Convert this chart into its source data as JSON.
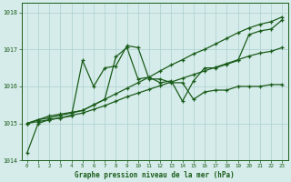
{
  "xlabel": "Graphe pression niveau de la mer (hPa)",
  "ylim": [
    1014.0,
    1018.25
  ],
  "xlim": [
    -0.5,
    23.5
  ],
  "yticks": [
    1014,
    1015,
    1016,
    1017,
    1018
  ],
  "xticks": [
    0,
    1,
    2,
    3,
    4,
    5,
    6,
    7,
    8,
    9,
    10,
    11,
    12,
    13,
    14,
    15,
    16,
    17,
    18,
    19,
    20,
    21,
    22,
    23
  ],
  "bg_color": "#d6ecea",
  "grid_color": "#aacfcf",
  "line_color": "#1a5c1a",
  "series": [
    [
      1014.2,
      1015.0,
      1015.1,
      1015.15,
      1015.2,
      1016.7,
      1016.0,
      1016.5,
      1016.55,
      1017.1,
      1017.05,
      1016.2,
      1016.2,
      1016.1,
      1016.1,
      1015.65,
      1015.85,
      1015.9,
      1015.9,
      1016.0,
      1016.0,
      1016.0,
      1016.05,
      1016.05
    ],
    [
      1015.0,
      1015.1,
      1015.2,
      1015.25,
      1015.3,
      1015.35,
      1015.5,
      1015.65,
      1016.8,
      1017.05,
      1016.2,
      1016.25,
      1016.1,
      1016.15,
      1015.6,
      1016.15,
      1016.5,
      1016.5,
      1016.6,
      1016.7,
      1017.4,
      1017.5,
      1017.55,
      1017.8
    ],
    [
      1015.0,
      1015.1,
      1015.15,
      1015.22,
      1015.28,
      1015.35,
      1015.5,
      1015.65,
      1015.8,
      1015.95,
      1016.1,
      1016.25,
      1016.42,
      1016.58,
      1016.72,
      1016.88,
      1017.0,
      1017.15,
      1017.3,
      1017.45,
      1017.58,
      1017.68,
      1017.75,
      1017.88
    ],
    [
      1015.0,
      1015.05,
      1015.1,
      1015.15,
      1015.22,
      1015.28,
      1015.38,
      1015.48,
      1015.6,
      1015.72,
      1015.82,
      1015.92,
      1016.02,
      1016.12,
      1016.22,
      1016.32,
      1016.42,
      1016.52,
      1016.62,
      1016.72,
      1016.82,
      1016.9,
      1016.95,
      1017.05
    ]
  ]
}
